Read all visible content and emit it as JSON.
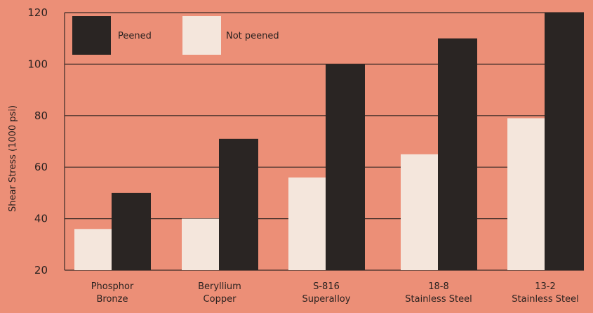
{
  "chart_data": {
    "type": "bar",
    "title": "",
    "xlabel": "",
    "ylabel": "Shear Stress (1000 psi)",
    "ylim": [
      20,
      120
    ],
    "yticks": [
      "20",
      "40",
      "60",
      "80",
      "100",
      "120"
    ],
    "grid": true,
    "legend_position": "top-left",
    "categories": [
      [
        "Phosphor",
        "Bronze"
      ],
      [
        "Beryllium",
        "Copper"
      ],
      [
        "S-816",
        "Superalloy"
      ],
      [
        "18-8",
        "Stainless Steel"
      ],
      [
        "13-2",
        "Stainless Steel"
      ]
    ],
    "series": [
      {
        "name": "Not peened",
        "color": "#f4e6dc",
        "values": [
          36,
          40,
          56,
          65,
          79
        ]
      },
      {
        "name": "Peened",
        "color": "#2a2523",
        "values": [
          50,
          71,
          100,
          110,
          120
        ]
      }
    ]
  }
}
